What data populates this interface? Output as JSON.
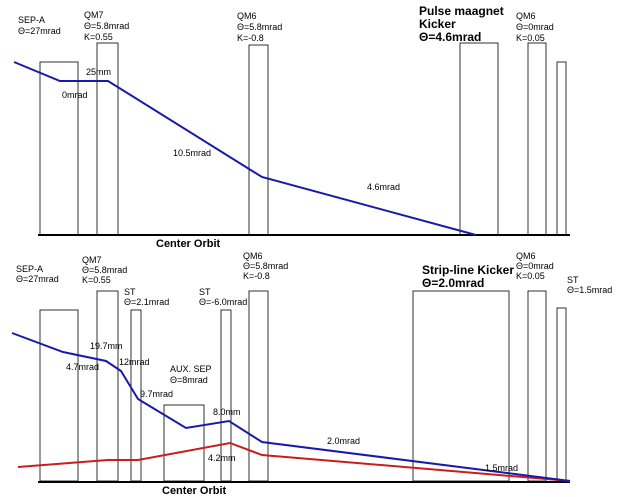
{
  "top": {
    "elements": [
      {
        "name": "SEP-A",
        "theta": "Θ=27mrad",
        "k": ""
      },
      {
        "name": "QM7",
        "theta": "Θ=5.8mrad",
        "k": "K=0.55"
      },
      {
        "name": "QM6",
        "theta": "Θ=5.8mrad",
        "k": "K=-0.8"
      },
      {
        "name": "QM6",
        "theta": "Θ=0mrad",
        "k": "K=0.05"
      }
    ],
    "kicker": {
      "line1": "Pulse maagnet",
      "line2": "Kicker",
      "theta": "Θ=4.6mrad"
    },
    "orbit_labels": [
      "25mm",
      "0mrad",
      "10.5mrad",
      "4.6mrad"
    ],
    "center_orbit": "Center Orbit",
    "colors": {
      "orbit": "#1a1aaa",
      "outline": "#000000"
    }
  },
  "bottom": {
    "elements": [
      {
        "name": "SEP-A",
        "theta": "Θ=27mrad",
        "k": ""
      },
      {
        "name": "QM7",
        "theta": "Θ=5.8mrad",
        "k": "K=0.55"
      },
      {
        "name": "ST",
        "theta": "Θ=2.1mrad",
        "k": ""
      },
      {
        "name": "ST",
        "theta": "Θ=-6.0mrad",
        "k": ""
      },
      {
        "name": "QM6",
        "theta": "Θ=5.8mrad",
        "k": "K=-0.8"
      },
      {
        "name": "QM6",
        "theta": "Θ=0mrad",
        "k": "K=0.05"
      },
      {
        "name": "ST",
        "theta": "Θ=1.5mrad",
        "k": ""
      }
    ],
    "aux_sep": {
      "name": "AUX. SEP",
      "theta": "Θ=8mrad"
    },
    "kicker": {
      "line1": "Strip-line Kicker",
      "theta": "Θ=2.0mrad"
    },
    "orbit_labels": [
      "19.7mm",
      "4.7mrad",
      "12mrad",
      "9.7mrad",
      "8.0mm",
      "4.2mm",
      "2.0mrad",
      "1.5mrad"
    ],
    "center_orbit": "Center Orbit",
    "colors": {
      "orbit_blue": "#1a1aaa",
      "orbit_red": "#c81e1e",
      "outline": "#000000"
    }
  }
}
